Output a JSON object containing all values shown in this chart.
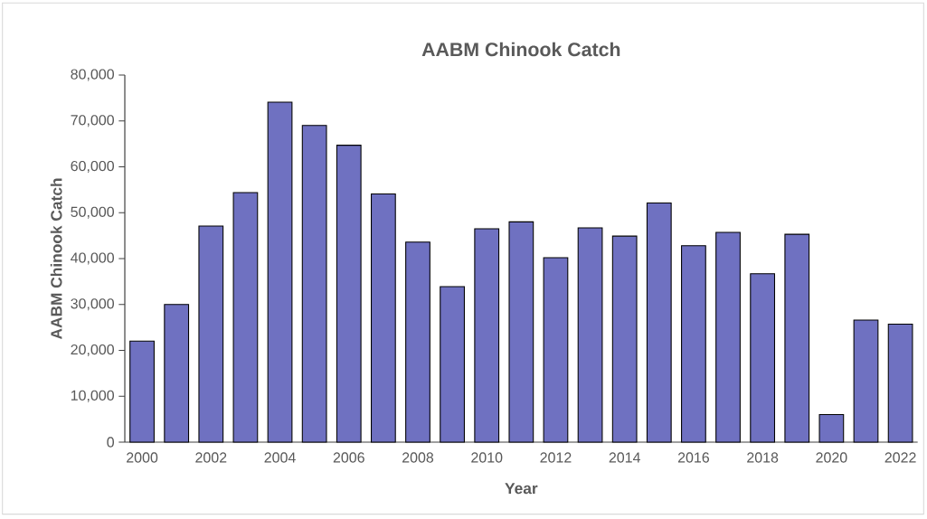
{
  "chart_data": {
    "type": "bar",
    "title": "AABM Chinook Catch",
    "xlabel": "Year",
    "ylabel": "AABM Chinook Catch",
    "categories": [
      "2000",
      null,
      "2002",
      null,
      "2004",
      null,
      "2006",
      null,
      "2008",
      null,
      "2010",
      null,
      "2012",
      null,
      "2014",
      null,
      "2016",
      null,
      "2018",
      null,
      "2020",
      null,
      "2022"
    ],
    "values": [
      22000,
      30000,
      47100,
      54400,
      74100,
      69000,
      64700,
      54100,
      43600,
      33900,
      46500,
      48000,
      40200,
      46700,
      44900,
      52100,
      42800,
      45700,
      36700,
      45300,
      6000,
      26600,
      25700
    ],
    "color": "#6f71c1",
    "ylim": [
      0,
      80000
    ],
    "yticks": [
      {
        "value": 0,
        "label": "0"
      },
      {
        "value": 10000,
        "label": "10,000"
      },
      {
        "value": 20000,
        "label": "20,000"
      },
      {
        "value": 30000,
        "label": "30,000"
      },
      {
        "value": 40000,
        "label": "40,000"
      },
      {
        "value": 50000,
        "label": "50,000"
      },
      {
        "value": 60000,
        "label": "60,000"
      },
      {
        "value": 70000,
        "label": "70,000"
      },
      {
        "value": 80000,
        "label": "80,000"
      }
    ]
  }
}
